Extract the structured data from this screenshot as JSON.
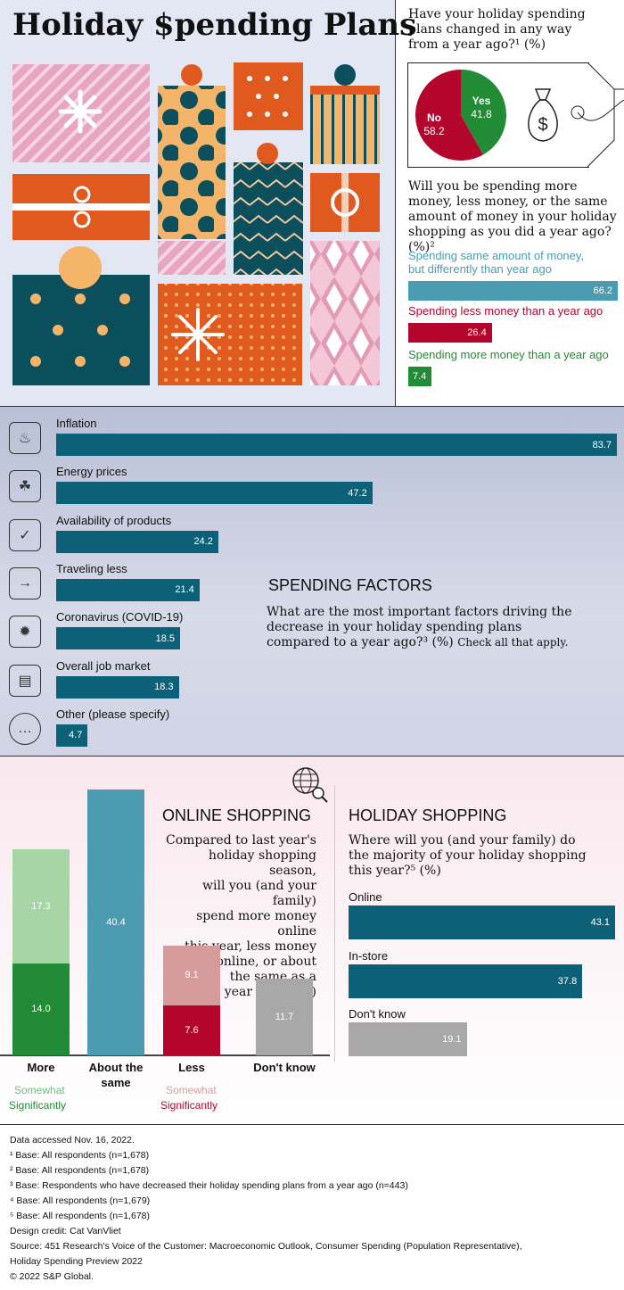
{
  "title": "Holiday $pending Plans",
  "colors": {
    "teal": "#0c6077",
    "light_teal": "#4b9cb0",
    "red": "#b4062d",
    "green": "#228b36",
    "light_green": "#a6d6a6",
    "pink": "#d69c9c",
    "gray": "#a8a8a8",
    "bg_top": "#e3e6f3",
    "bg_mid": "#c9cde0",
    "bg_bottom": "#f9e8ed"
  },
  "pie": {
    "question": "Have your holiday spending plans changed in any way from a year ago?¹ (%)",
    "chart_data": {
      "type": "pie",
      "labels": [
        "Yes",
        "No"
      ],
      "values": [
        41.8,
        58.2
      ]
    }
  },
  "spending_amount": {
    "question": "Will you be spending more money, less money, or the same amount of money in your holiday shopping as you did a year ago? (%)²",
    "chart_data": {
      "type": "bar",
      "categories": [
        "Spending same amount of money, but differently than year ago",
        "Spending less money than a year ago",
        "Spending more money than a year ago"
      ],
      "values": [
        66.2,
        26.4,
        7.4
      ]
    },
    "label_lines": [
      [
        "Spending same amount of money,",
        "but differently than year ago"
      ],
      [
        "Spending less money than a year ago"
      ],
      [
        "Spending more money than a year ago"
      ]
    ]
  },
  "factors": {
    "title": "SPENDING FACTORS",
    "question": "What are the most important factors driving the decrease in your holiday spending plans compared to a year ago?³ (%)",
    "note": "Check all that apply.",
    "chart_data": {
      "type": "bar",
      "categories": [
        "Inflation",
        "Energy prices",
        "Availability of products",
        "Traveling less",
        "Coronavirus (COVID-19)",
        "Overall job market",
        "Other (please specify)"
      ],
      "values": [
        83.7,
        47.2,
        24.2,
        21.4,
        18.5,
        18.3,
        4.7
      ]
    },
    "icons": [
      "flame-coins-icon",
      "leaf-coins-icon",
      "box-check-icon",
      "car-road-icon",
      "virus-icon",
      "briefcase-icon",
      "more-dots-icon"
    ]
  },
  "online": {
    "title": "ONLINE SHOPPING",
    "question_lines": [
      "Compared to last year's",
      "holiday shopping season,",
      "will you (and your family)",
      "spend more money online",
      "this year, less money",
      "online, or about",
      "the same as a",
      "year ago?⁴ (%)"
    ],
    "chart_data": {
      "type": "bar",
      "categories": [
        "More",
        "About the same",
        "Less",
        "Don't know"
      ],
      "series": [
        {
          "name": "Significantly",
          "values": [
            14.0,
            null,
            7.6,
            null
          ]
        },
        {
          "name": "Somewhat",
          "values": [
            17.3,
            null,
            9.1,
            null
          ]
        },
        {
          "name": "",
          "values": [
            null,
            40.4,
            null,
            11.7
          ]
        }
      ]
    },
    "cat_lines": [
      [
        "More"
      ],
      [
        "About the",
        "same"
      ],
      [
        "Less"
      ],
      [
        "Don't know"
      ]
    ],
    "legend": {
      "somewhat": "Somewhat",
      "significantly": "Significantly"
    }
  },
  "holiday": {
    "title": "HOLIDAY SHOPPING",
    "question_lines": [
      "Where will you (and your family) do",
      "the majority of your holiday shopping",
      "this year?⁵ (%)"
    ],
    "chart_data": {
      "type": "bar",
      "categories": [
        "Online",
        "In-store",
        "Don't know"
      ],
      "values": [
        43.1,
        37.8,
        19.1
      ]
    }
  },
  "footer": [
    "Data accessed Nov. 16, 2022.",
    "¹ Base: All respondents (n=1,678)",
    "² Base: All respondents (n=1,678)",
    "³ Base: Respondents who have decreased their holiday spending plans from a year ago (n=443)",
    "⁴ Base: All respondents (n=1,679)",
    "⁵ Base: All respondents (n=1,678)",
    "Design credit: Cat VanVliet",
    "Source: 451 Research's Voice of the Customer: Macroeconomic Outlook, Consumer Spending (Population Representative),",
    "Holiday Spending Preview 2022",
    "© 2022 S&P Global."
  ]
}
